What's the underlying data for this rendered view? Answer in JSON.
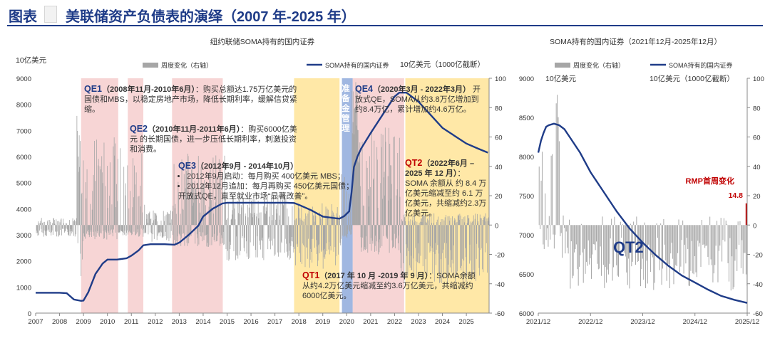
{
  "header": {
    "prefix": "图表",
    "title": "美联储资产负债表的演绎（2007 年-2025 年）"
  },
  "colors": {
    "line": "#1f3c88",
    "bars": "#a6a6a6",
    "qe_band": "#f4c7c7",
    "qt_band": "#ffe08a",
    "reserve_band": "#9bb3df",
    "accent": "#1f3c88",
    "red": "#c00000"
  },
  "chart_data": [
    {
      "type": "line",
      "title": "纽约联储SOMA持有的国内证券",
      "legend": {
        "placement": "top",
        "bars_label": "周度变化（右轴）",
        "line_label": "SOMA持有的国内证券"
      },
      "left_unit": "10亿美元",
      "right_unit": "10亿美元（1000亿截断）",
      "x_ticks": [
        "2007",
        "2008",
        "2009",
        "2010",
        "2011",
        "2012",
        "2013",
        "2014",
        "2015",
        "2016",
        "2017",
        "2018",
        "2019",
        "2020",
        "2021",
        "2022",
        "2023",
        "2024",
        "2025"
      ],
      "y_left": {
        "range": [
          0,
          9000
        ],
        "ticks": [
          0,
          1000,
          2000,
          3000,
          4000,
          5000,
          6000,
          7000,
          8000,
          9000
        ]
      },
      "y_right": {
        "range": [
          -60,
          100
        ],
        "ticks": [
          -60,
          -40,
          -20,
          0,
          20,
          40,
          60,
          80,
          100
        ]
      },
      "series": [
        {
          "name": "SOMA持有的国内证券",
          "x": [
            2007.0,
            2008.0,
            2008.3,
            2008.6,
            2008.9,
            2009.0,
            2009.2,
            2009.5,
            2009.8,
            2010.0,
            2010.4,
            2010.8,
            2011.0,
            2011.3,
            2011.5,
            2011.8,
            2012.0,
            2012.4,
            2012.8,
            2013.0,
            2013.4,
            2013.8,
            2014.0,
            2014.4,
            2014.8,
            2015.0,
            2015.5,
            2016.0,
            2016.5,
            2017.0,
            2017.5,
            2017.8,
            2018.0,
            2018.5,
            2019.0,
            2019.4,
            2019.7,
            2019.9,
            2020.1,
            2020.2,
            2020.3,
            2020.45,
            2020.6,
            2021.0,
            2021.5,
            2022.0,
            2022.2,
            2022.5,
            2023.0,
            2023.5,
            2024.0,
            2024.5,
            2025.0,
            2025.5,
            2025.9
          ],
          "y": [
            780,
            780,
            760,
            520,
            470,
            480,
            800,
            1500,
            1900,
            2050,
            2050,
            2100,
            2200,
            2400,
            2600,
            2640,
            2640,
            2640,
            2620,
            2700,
            3000,
            3350,
            3700,
            4000,
            4200,
            4230,
            4230,
            4230,
            4230,
            4230,
            4230,
            4220,
            4150,
            3950,
            3700,
            3650,
            3620,
            3720,
            3900,
            4600,
            5600,
            6000,
            6300,
            6900,
            7600,
            8300,
            8450,
            8450,
            8100,
            7600,
            7100,
            6800,
            6500,
            6300,
            6150
          ]
        }
      ],
      "weekly_change_bars": {
        "name": "周度变化（右轴）",
        "series_points_estimated": true
      },
      "periods": [
        {
          "label": "QE1",
          "kind": "QE",
          "start": 2008.9,
          "end": 2010.45
        },
        {
          "label": "QE2",
          "kind": "QE",
          "start": 2010.85,
          "end": 2011.5
        },
        {
          "label": "QE3",
          "kind": "QE",
          "start": 2012.7,
          "end": 2014.82
        },
        {
          "label": "QT1",
          "kind": "QT",
          "start": 2017.8,
          "end": 2019.7
        },
        {
          "label": "准备金管理",
          "kind": "reserve",
          "start": 2019.8,
          "end": 2020.25
        },
        {
          "label": "QE4",
          "kind": "QE",
          "start": 2020.25,
          "end": 2022.4
        },
        {
          "label": "QT2",
          "kind": "QT",
          "start": 2022.45,
          "end": 2025.95
        }
      ],
      "annotations": {
        "qe1_head": "QE1",
        "qe1_dates": "（2008年11月-2010年6月）",
        "qe1_text": "：购买总额达1.75万亿美元的国债和MBS，以稳定房地产市场，降低长期利率，缓解信贷紧缩。",
        "qe2_head": "QE2",
        "qe2_dates": "（2010年11月-2011年6月）",
        "qe2_text": "：购买6000亿美元 的长期国债，进一步压低长期利率，刺激投资和消费。",
        "qe3_head": "QE3",
        "qe3_dates": "（2012年9月 - 2014年10月）",
        "qe3_b1": "2012年9月启动：每月购买 400亿美元 MBS；",
        "qe3_b2": "2012年12月追加：每月再购买 450亿美元国债；",
        "qe3_text": "开放式QE，直至就业市场“显著改善”。",
        "reserve_label": "准备金管理",
        "qe4_head": "QE4",
        "qe4_dates": "（2020年3月 - 2022年3月）",
        "qe4_text": "开放式QE，SOMA从约3.8万亿增加到约8.4万亿，累计增加约4.6万亿。",
        "qt2_head": "QT2",
        "qt2_dates": "（2022年6月 – 2025 年 12 月）",
        "qt2_text": "：SOMA 余额从 约 8.4 万亿美元缩减至约 6.1 万亿美元，共缩减约2.3万亿美元。",
        "qt1_head": "QT1",
        "qt1_dates": "（2017 年 10 月 -2019 年 9 月）",
        "qt1_text": "：SOMA余额从约4.2万亿美元缩减至约3.6万亿美元，共缩减约 6000亿美元。"
      }
    },
    {
      "type": "line",
      "title": "SOMA持有的国内证券（2021年12月-2025年12月）",
      "legend": {
        "placement": "top",
        "bars_label": "周度变化（右轴）",
        "line_label": "SOMA持有的国内证券"
      },
      "left_unit": "10亿美元",
      "right_unit": "10亿美元（1000亿截断）",
      "x_ticks": [
        "2021/12",
        "2022/12",
        "2023/12",
        "2024/12",
        "2025/12"
      ],
      "y_left": {
        "range": [
          6000,
          9000
        ],
        "ticks": [
          6000,
          6500,
          7000,
          7500,
          8000,
          8500,
          9000
        ]
      },
      "y_right": {
        "range": [
          -60,
          100
        ],
        "ticks": [
          -60,
          -40,
          -20,
          0,
          20,
          40,
          60,
          80,
          100
        ]
      },
      "series": [
        {
          "name": "SOMA持有的国内证券",
          "x": [
            0.0,
            0.05,
            0.1,
            0.15,
            0.2,
            0.3,
            0.4,
            0.5,
            0.6,
            0.8,
            1.0,
            1.25,
            1.5,
            1.75,
            2.0,
            2.25,
            2.5,
            2.75,
            3.0,
            3.25,
            3.5,
            3.75,
            4.0
          ],
          "y": [
            8050,
            8200,
            8300,
            8380,
            8400,
            8420,
            8400,
            8350,
            8250,
            8050,
            7800,
            7550,
            7300,
            7080,
            6900,
            6740,
            6600,
            6480,
            6390,
            6300,
            6220,
            6170,
            6130
          ]
        }
      ],
      "annotations": {
        "rmp_label": "RMP首周变化",
        "rmp_value": "14.8",
        "qt2_big": "QT2"
      }
    }
  ]
}
